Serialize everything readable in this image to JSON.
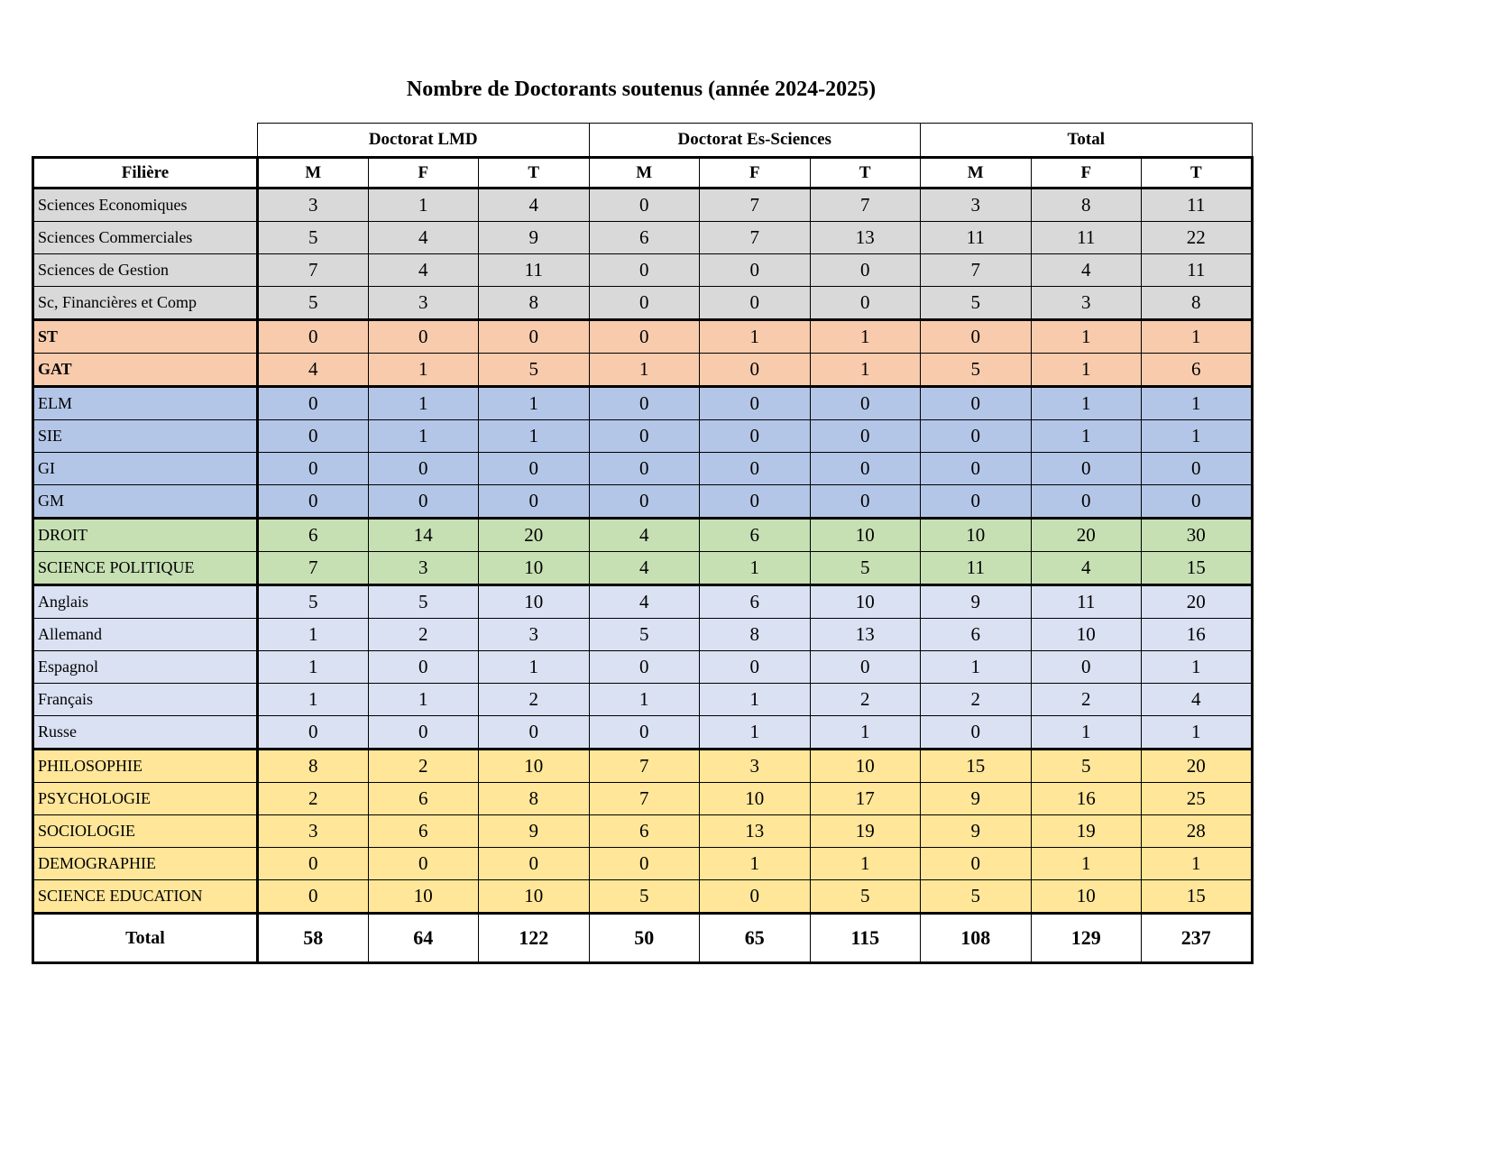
{
  "title": "Nombre de Doctorants soutenus (année 2024-2025)",
  "table": {
    "filiere_header": "Filière",
    "group_headers": [
      {
        "label": "Doctorat LMD"
      },
      {
        "label": "Doctorat Es-Sciences"
      },
      {
        "label": "Total"
      }
    ],
    "sub_headers": [
      "M",
      "F",
      "T",
      "M",
      "F",
      "T",
      "M",
      "F",
      "T"
    ],
    "group_colors": {
      "gray": "#d9d9d9",
      "orange": "#f8cbad",
      "blue": "#b4c6e7",
      "green": "#c6e0b4",
      "lightblue": "#d9e1f2",
      "yellow": "#ffe699"
    },
    "rows": [
      {
        "label": "Sciences Economiques",
        "group": "gray",
        "bold": false,
        "group_end": false,
        "values": [
          3,
          1,
          4,
          0,
          7,
          7,
          3,
          8,
          11
        ]
      },
      {
        "label": "Sciences Commerciales",
        "group": "gray",
        "bold": false,
        "group_end": false,
        "values": [
          5,
          4,
          9,
          6,
          7,
          13,
          11,
          11,
          22
        ]
      },
      {
        "label": "Sciences de Gestion",
        "group": "gray",
        "bold": false,
        "group_end": false,
        "values": [
          7,
          4,
          11,
          0,
          0,
          0,
          7,
          4,
          11
        ]
      },
      {
        "label": "Sc, Financières et Comp",
        "group": "gray",
        "bold": false,
        "group_end": true,
        "values": [
          5,
          3,
          8,
          0,
          0,
          0,
          5,
          3,
          8
        ]
      },
      {
        "label": "ST",
        "group": "orange",
        "bold": true,
        "group_end": false,
        "values": [
          0,
          0,
          0,
          0,
          1,
          1,
          0,
          1,
          1
        ]
      },
      {
        "label": "GAT",
        "group": "orange",
        "bold": true,
        "group_end": true,
        "values": [
          4,
          1,
          5,
          1,
          0,
          1,
          5,
          1,
          6
        ]
      },
      {
        "label": "ELM",
        "group": "blue",
        "bold": false,
        "group_end": false,
        "values": [
          0,
          1,
          1,
          0,
          0,
          0,
          0,
          1,
          1
        ]
      },
      {
        "label": "SIE",
        "group": "blue",
        "bold": false,
        "group_end": false,
        "values": [
          0,
          1,
          1,
          0,
          0,
          0,
          0,
          1,
          1
        ]
      },
      {
        "label": "GI",
        "group": "blue",
        "bold": false,
        "group_end": false,
        "values": [
          0,
          0,
          0,
          0,
          0,
          0,
          0,
          0,
          0
        ]
      },
      {
        "label": "GM",
        "group": "blue",
        "bold": false,
        "group_end": true,
        "values": [
          0,
          0,
          0,
          0,
          0,
          0,
          0,
          0,
          0
        ]
      },
      {
        "label": "DROIT",
        "group": "green",
        "bold": false,
        "group_end": false,
        "values": [
          6,
          14,
          20,
          4,
          6,
          10,
          10,
          20,
          30
        ]
      },
      {
        "label": "SCIENCE POLITIQUE",
        "group": "green",
        "bold": false,
        "group_end": true,
        "values": [
          7,
          3,
          10,
          4,
          1,
          5,
          11,
          4,
          15
        ]
      },
      {
        "label": "Anglais",
        "group": "lightblue",
        "bold": false,
        "group_end": false,
        "values": [
          5,
          5,
          10,
          4,
          6,
          10,
          9,
          11,
          20
        ]
      },
      {
        "label": "Allemand",
        "group": "lightblue",
        "bold": false,
        "group_end": false,
        "values": [
          1,
          2,
          3,
          5,
          8,
          13,
          6,
          10,
          16
        ]
      },
      {
        "label": "Espagnol",
        "group": "lightblue",
        "bold": false,
        "group_end": false,
        "values": [
          1,
          0,
          1,
          0,
          0,
          0,
          1,
          0,
          1
        ]
      },
      {
        "label": "Français",
        "group": "lightblue",
        "bold": false,
        "group_end": false,
        "values": [
          1,
          1,
          2,
          1,
          1,
          2,
          2,
          2,
          4
        ]
      },
      {
        "label": "Russe",
        "group": "lightblue",
        "bold": false,
        "group_end": true,
        "values": [
          0,
          0,
          0,
          0,
          1,
          1,
          0,
          1,
          1
        ]
      },
      {
        "label": "PHILOSOPHIE",
        "group": "yellow",
        "bold": false,
        "group_end": false,
        "values": [
          8,
          2,
          10,
          7,
          3,
          10,
          15,
          5,
          20
        ]
      },
      {
        "label": "PSYCHOLOGIE",
        "group": "yellow",
        "bold": false,
        "group_end": false,
        "values": [
          2,
          6,
          8,
          7,
          10,
          17,
          9,
          16,
          25
        ]
      },
      {
        "label": "SOCIOLOGIE",
        "group": "yellow",
        "bold": false,
        "group_end": false,
        "values": [
          3,
          6,
          9,
          6,
          13,
          19,
          9,
          19,
          28
        ]
      },
      {
        "label": "DEMOGRAPHIE",
        "group": "yellow",
        "bold": false,
        "group_end": false,
        "values": [
          0,
          0,
          0,
          0,
          1,
          1,
          0,
          1,
          1
        ]
      },
      {
        "label": "SCIENCE EDUCATION",
        "group": "yellow",
        "bold": false,
        "group_end": true,
        "values": [
          0,
          10,
          10,
          5,
          0,
          5,
          5,
          10,
          15
        ]
      }
    ],
    "total_row": {
      "label": "Total",
      "values": [
        58,
        64,
        122,
        50,
        65,
        115,
        108,
        129,
        237
      ]
    }
  }
}
